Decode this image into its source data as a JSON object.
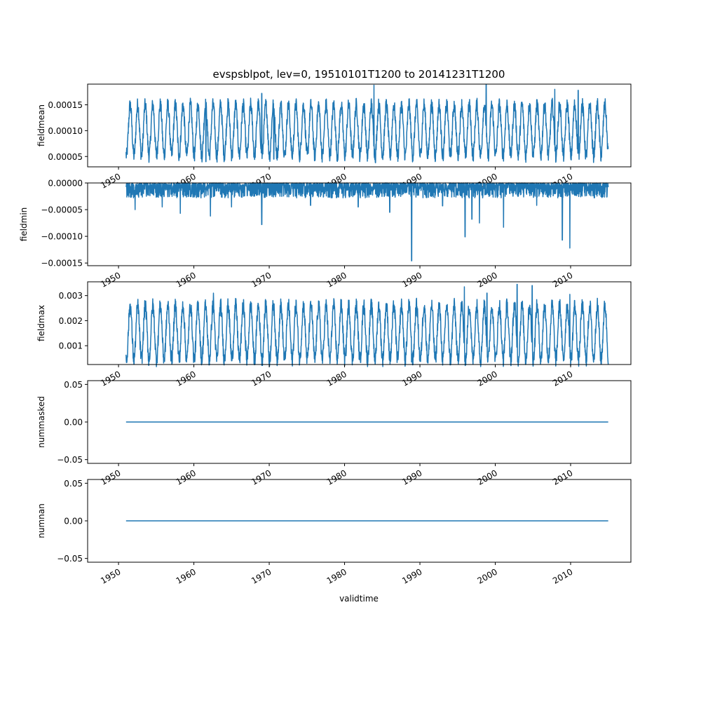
{
  "figure": {
    "title": "evspsblpot, lev=0, 19510101T1200 to 20141231T1200",
    "xlabel": "validtime"
  },
  "colors": {
    "series": "#1f77b4",
    "axes": "#000000",
    "background": "#ffffff"
  },
  "chart_data": [
    {
      "type": "line",
      "title": "evspsblpot, lev=0, 19510101T1200 to 20141231T1200",
      "xlabel": "",
      "ylabel": "fieldmean",
      "x_range": [
        1950.0,
        2018.0
      ],
      "xlim": [
        1945.9,
        2018.0
      ],
      "ylim": [
        3e-05,
        0.00019
      ],
      "xticks": [
        1950,
        1960,
        1970,
        1980,
        1990,
        2000,
        2010
      ],
      "xtick_labels": [
        "1950",
        "1960",
        "1970",
        "1980",
        "1990",
        "2000",
        "2010"
      ],
      "xtick_labels_visible": true,
      "yticks": [
        5e-05,
        0.0001,
        0.00015
      ],
      "ytick_labels": [
        "0.00005",
        "0.00010",
        "0.00015"
      ],
      "grid": false,
      "legend": false,
      "pattern": "seasonal",
      "series": [
        {
          "name": "",
          "x_start": 1951.0,
          "x_end": 2014.99,
          "seasonal_peak": 0.00015,
          "seasonal_trough": 5.2e-05,
          "spikes": [
            {
              "x": 1983.9,
              "y": 0.000188
            },
            {
              "x": 1998.8,
              "y": 0.000189
            },
            {
              "x": 1984.1,
              "y": 3.8e-05
            },
            {
              "x": 1961.6,
              "y": 4e-05
            },
            {
              "x": 1969.0,
              "y": 0.000172
            },
            {
              "x": 2007.9,
              "y": 0.00018
            },
            {
              "x": 2011.0,
              "y": 0.000178
            },
            {
              "x": 1970.6,
              "y": 4.5e-05
            }
          ]
        }
      ]
    },
    {
      "type": "line",
      "xlabel": "",
      "ylabel": "fieldmin",
      "x_range": [
        1950.0,
        2018.0
      ],
      "xlim": [
        1945.9,
        2018.0
      ],
      "ylim": [
        -0.000155,
        0.0
      ],
      "xticks": [
        1950,
        1960,
        1970,
        1980,
        1990,
        2000,
        2010
      ],
      "xtick_labels": [
        "1950",
        "1960",
        "1970",
        "1980",
        "1990",
        "2000",
        "2010"
      ],
      "xtick_labels_visible": true,
      "yticks": [
        -0.00015,
        -0.0001,
        -5e-05,
        0.0
      ],
      "ytick_labels": [
        "−0.00015",
        "−0.00010",
        "−0.00005",
        "0.00000"
      ],
      "grid": false,
      "legend": false,
      "pattern": "noise-band",
      "series": [
        {
          "name": "",
          "x_start": 1951.0,
          "x_end": 2014.99,
          "band_top": 0.0,
          "band_bottom": -2.8e-05,
          "spikes": [
            {
              "x": 1952.2,
              "y": -5e-05
            },
            {
              "x": 1955.8,
              "y": -4.5e-05
            },
            {
              "x": 1958.2,
              "y": -5.7e-05
            },
            {
              "x": 1962.2,
              "y": -6.2e-05
            },
            {
              "x": 1965.0,
              "y": -4.5e-05
            },
            {
              "x": 1969.0,
              "y": -7.8e-05
            },
            {
              "x": 1975.5,
              "y": -4.2e-05
            },
            {
              "x": 1981.8,
              "y": -4.5e-05
            },
            {
              "x": 1986.0,
              "y": -5.5e-05
            },
            {
              "x": 1988.9,
              "y": -0.000146
            },
            {
              "x": 1993.0,
              "y": -4.3e-05
            },
            {
              "x": 1996.0,
              "y": -0.000101
            },
            {
              "x": 1996.9,
              "y": -6.8e-05
            },
            {
              "x": 1997.9,
              "y": -7.5e-05
            },
            {
              "x": 2001.1,
              "y": -8.3e-05
            },
            {
              "x": 2005.5,
              "y": -4.2e-05
            },
            {
              "x": 2008.9,
              "y": -0.000107
            },
            {
              "x": 2009.9,
              "y": -0.000122
            }
          ]
        }
      ]
    },
    {
      "type": "line",
      "xlabel": "",
      "ylabel": "fieldmax",
      "x_range": [
        1950.0,
        2018.0
      ],
      "xlim": [
        1945.9,
        2018.0
      ],
      "ylim": [
        0.00025,
        0.00355
      ],
      "xticks": [
        1950,
        1960,
        1970,
        1980,
        1990,
        2000,
        2010
      ],
      "xtick_labels": [
        "1950",
        "1960",
        "1970",
        "1980",
        "1990",
        "2000",
        "2010"
      ],
      "xtick_labels_visible": true,
      "yticks": [
        0.001,
        0.002,
        0.003
      ],
      "ytick_labels": [
        "0.001",
        "0.002",
        "0.003"
      ],
      "grid": false,
      "legend": false,
      "pattern": "seasonal",
      "series": [
        {
          "name": "",
          "x_start": 1951.0,
          "x_end": 2014.99,
          "seasonal_peak": 0.0026,
          "seasonal_trough": 0.00045,
          "spikes": [
            {
              "x": 1995.9,
              "y": 0.00335
            },
            {
              "x": 2002.9,
              "y": 0.00345
            },
            {
              "x": 2004.9,
              "y": 0.0034
            },
            {
              "x": 1988.9,
              "y": 0.00035
            },
            {
              "x": 1962.6,
              "y": 0.0031
            },
            {
              "x": 1998.9,
              "y": 0.0031
            },
            {
              "x": 2009.9,
              "y": 0.00305
            }
          ]
        }
      ]
    },
    {
      "type": "line",
      "xlabel": "",
      "ylabel": "nummasked",
      "x_range": [
        1950.0,
        2018.0
      ],
      "xlim": [
        1945.9,
        2018.0
      ],
      "ylim": [
        -0.055,
        0.055
      ],
      "xticks": [
        1950,
        1960,
        1970,
        1980,
        1990,
        2000,
        2010
      ],
      "xtick_labels": [
        "1950",
        "1960",
        "1970",
        "1980",
        "1990",
        "2000",
        "2010"
      ],
      "xtick_labels_visible": true,
      "yticks": [
        -0.05,
        0.0,
        0.05
      ],
      "ytick_labels": [
        "−0.05",
        "0.00",
        "0.05"
      ],
      "grid": false,
      "legend": false,
      "pattern": "constant",
      "series": [
        {
          "name": "",
          "x_start": 1951.0,
          "x_end": 2014.99,
          "value": 0.0
        }
      ]
    },
    {
      "type": "line",
      "xlabel": "validtime",
      "ylabel": "numnan",
      "x_range": [
        1950.0,
        2018.0
      ],
      "xlim": [
        1945.9,
        2018.0
      ],
      "ylim": [
        -0.055,
        0.055
      ],
      "xticks": [
        1950,
        1960,
        1970,
        1980,
        1990,
        2000,
        2010
      ],
      "xtick_labels": [
        "1950",
        "1960",
        "1970",
        "1980",
        "1990",
        "2000",
        "2010"
      ],
      "xtick_labels_visible": true,
      "yticks": [
        -0.05,
        0.0,
        0.05
      ],
      "ytick_labels": [
        "−0.05",
        "0.00",
        "0.05"
      ],
      "grid": false,
      "legend": false,
      "pattern": "constant",
      "series": [
        {
          "name": "",
          "x_start": 1951.0,
          "x_end": 2014.99,
          "value": 0.0
        }
      ]
    }
  ]
}
